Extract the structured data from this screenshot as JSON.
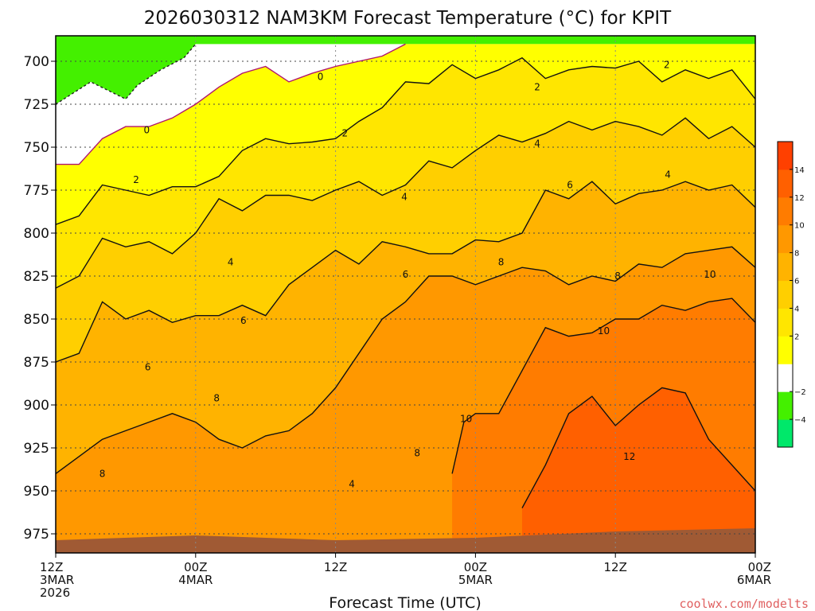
{
  "title": "2026030312 NAM3KM Forecast Temperature (°C) for KPIT",
  "credit": "coolwx.com/modelts",
  "chart_data": {
    "type": "contour",
    "title": "2026030312 NAM3KM Forecast Temperature (°C) for KPIT",
    "xlabel": "Forecast Time (UTC)",
    "ylabel": "",
    "ylim": [
      980,
      690
    ],
    "y_axis": "pressure (hPa), inverted",
    "y_ticks": [
      "700",
      "725",
      "750",
      "775",
      "800",
      "825",
      "850",
      "875",
      "900",
      "925",
      "950",
      "975"
    ],
    "x_ticks": [
      {
        "line1": "12Z",
        "line2": "3MAR",
        "line3": "2026"
      },
      {
        "line1": "00Z",
        "line2": "4MAR",
        "line3": ""
      },
      {
        "line1": "12Z",
        "line2": "",
        "line3": ""
      },
      {
        "line1": "00Z",
        "line2": "5MAR",
        "line3": ""
      },
      {
        "line1": "12Z",
        "line2": "",
        "line3": ""
      },
      {
        "line1": "00Z",
        "line2": "6MAR",
        "line3": ""
      }
    ],
    "x_hours": [
      0,
      12,
      24,
      36,
      48,
      60
    ],
    "grid": true,
    "colorbar": {
      "placement": "right",
      "levels": [
        -6,
        -4,
        -2,
        0,
        2,
        4,
        6,
        8,
        10,
        12,
        14,
        16
      ],
      "labels": [
        "−4",
        "−2",
        "2",
        "4",
        "6",
        "8",
        "10",
        "12",
        "14"
      ],
      "colors": [
        "#00e86a",
        "#44f000",
        "#ffffff",
        "#ffff00",
        "#ffe600",
        "#ffcf00",
        "#ffb300",
        "#ff9800",
        "#ff7c00",
        "#ff6000",
        "#ff4000"
      ]
    },
    "isotherms": [
      {
        "level": -2,
        "points": [
          [
            0,
            725
          ],
          [
            3,
            712
          ],
          [
            6,
            722
          ],
          [
            7,
            714
          ],
          [
            9,
            705
          ],
          [
            11,
            698
          ],
          [
            12,
            690
          ]
        ]
      },
      {
        "level": 0,
        "points": [
          [
            0,
            760
          ],
          [
            2,
            760
          ],
          [
            4,
            745
          ],
          [
            6,
            738
          ],
          [
            8,
            738
          ],
          [
            10,
            733
          ],
          [
            12,
            725
          ],
          [
            14,
            715
          ],
          [
            16,
            707
          ],
          [
            18,
            703
          ],
          [
            20,
            712
          ],
          [
            22,
            707
          ],
          [
            24,
            703
          ],
          [
            26,
            700
          ],
          [
            28,
            697
          ],
          [
            30,
            690
          ]
        ]
      },
      {
        "level": 2,
        "points": [
          [
            0,
            795
          ],
          [
            2,
            790
          ],
          [
            4,
            772
          ],
          [
            6,
            775
          ],
          [
            8,
            778
          ],
          [
            10,
            773
          ],
          [
            12,
            773
          ],
          [
            14,
            767
          ],
          [
            16,
            752
          ],
          [
            18,
            745
          ],
          [
            20,
            748
          ],
          [
            22,
            747
          ],
          [
            24,
            745
          ],
          [
            26,
            735
          ],
          [
            28,
            727
          ],
          [
            30,
            712
          ],
          [
            32,
            713
          ],
          [
            34,
            702
          ],
          [
            36,
            710
          ],
          [
            38,
            705
          ],
          [
            40,
            698
          ],
          [
            42,
            710
          ],
          [
            44,
            705
          ],
          [
            46,
            703
          ],
          [
            48,
            704
          ],
          [
            50,
            700
          ],
          [
            52,
            712
          ],
          [
            54,
            705
          ],
          [
            56,
            710
          ],
          [
            58,
            705
          ],
          [
            60,
            722
          ]
        ]
      },
      {
        "level": 4,
        "points": [
          [
            0,
            832
          ],
          [
            2,
            825
          ],
          [
            4,
            803
          ],
          [
            6,
            808
          ],
          [
            8,
            805
          ],
          [
            10,
            812
          ],
          [
            12,
            800
          ],
          [
            14,
            780
          ],
          [
            16,
            787
          ],
          [
            18,
            778
          ],
          [
            20,
            778
          ],
          [
            22,
            781
          ],
          [
            24,
            775
          ],
          [
            26,
            770
          ],
          [
            28,
            778
          ],
          [
            30,
            772
          ],
          [
            32,
            758
          ],
          [
            34,
            762
          ],
          [
            36,
            752
          ],
          [
            38,
            743
          ],
          [
            40,
            747
          ],
          [
            42,
            742
          ],
          [
            44,
            735
          ],
          [
            46,
            740
          ],
          [
            48,
            735
          ],
          [
            50,
            738
          ],
          [
            52,
            743
          ],
          [
            54,
            733
          ],
          [
            56,
            745
          ],
          [
            58,
            738
          ],
          [
            60,
            750
          ]
        ]
      },
      {
        "level": 6,
        "points": [
          [
            0,
            875
          ],
          [
            2,
            870
          ],
          [
            4,
            840
          ],
          [
            6,
            850
          ],
          [
            8,
            845
          ],
          [
            10,
            852
          ],
          [
            12,
            848
          ],
          [
            14,
            848
          ],
          [
            16,
            842
          ],
          [
            18,
            848
          ],
          [
            20,
            830
          ],
          [
            22,
            820
          ],
          [
            24,
            810
          ],
          [
            26,
            818
          ],
          [
            28,
            805
          ],
          [
            30,
            808
          ],
          [
            32,
            812
          ],
          [
            34,
            812
          ],
          [
            36,
            804
          ],
          [
            38,
            805
          ],
          [
            40,
            800
          ],
          [
            42,
            775
          ],
          [
            44,
            780
          ],
          [
            46,
            770
          ],
          [
            48,
            783
          ],
          [
            50,
            777
          ],
          [
            52,
            775
          ],
          [
            54,
            770
          ],
          [
            56,
            775
          ],
          [
            58,
            772
          ],
          [
            60,
            785
          ]
        ]
      },
      {
        "level": 8,
        "points": [
          [
            0,
            940
          ],
          [
            2,
            930
          ],
          [
            4,
            920
          ],
          [
            6,
            915
          ],
          [
            8,
            910
          ],
          [
            10,
            905
          ],
          [
            12,
            910
          ],
          [
            14,
            920
          ],
          [
            16,
            925
          ],
          [
            18,
            918
          ],
          [
            20,
            915
          ],
          [
            22,
            905
          ],
          [
            24,
            890
          ],
          [
            26,
            870
          ],
          [
            28,
            850
          ],
          [
            30,
            840
          ],
          [
            32,
            825
          ],
          [
            34,
            825
          ],
          [
            36,
            830
          ],
          [
            38,
            825
          ],
          [
            40,
            820
          ],
          [
            42,
            822
          ],
          [
            44,
            830
          ],
          [
            46,
            825
          ],
          [
            48,
            828
          ],
          [
            50,
            818
          ],
          [
            52,
            820
          ],
          [
            54,
            812
          ],
          [
            56,
            810
          ],
          [
            58,
            808
          ],
          [
            60,
            820
          ]
        ]
      },
      {
        "level": 10,
        "points": [
          [
            34,
            940
          ],
          [
            35,
            910
          ],
          [
            36,
            905
          ],
          [
            38,
            905
          ],
          [
            40,
            880
          ],
          [
            42,
            855
          ],
          [
            44,
            860
          ],
          [
            46,
            858
          ],
          [
            48,
            850
          ],
          [
            50,
            850
          ],
          [
            52,
            842
          ],
          [
            54,
            845
          ],
          [
            56,
            840
          ],
          [
            58,
            838
          ],
          [
            60,
            852
          ]
        ]
      },
      {
        "level": 12,
        "points": [
          [
            40,
            960
          ],
          [
            42,
            935
          ],
          [
            44,
            905
          ],
          [
            46,
            895
          ],
          [
            48,
            912
          ],
          [
            50,
            900
          ],
          [
            52,
            890
          ],
          [
            54,
            893
          ],
          [
            56,
            920
          ],
          [
            58,
            935
          ],
          [
            60,
            950
          ]
        ]
      }
    ],
    "contour_labels": [
      {
        "text": "0",
        "hour": 22.7,
        "p": 709
      },
      {
        "text": "0",
        "hour": 7.8,
        "p": 740
      },
      {
        "text": "2",
        "hour": 24.8,
        "p": 742
      },
      {
        "text": "2",
        "hour": 41.3,
        "p": 715
      },
      {
        "text": "2",
        "hour": 52.4,
        "p": 702
      },
      {
        "text": "2",
        "hour": 6.9,
        "p": 769
      },
      {
        "text": "4",
        "hour": 41.3,
        "p": 748
      },
      {
        "text": "4",
        "hour": 29.9,
        "p": 779
      },
      {
        "text": "4",
        "hour": 52.5,
        "p": 766
      },
      {
        "text": "4",
        "hour": 15.0,
        "p": 817
      },
      {
        "text": "4",
        "hour": 25.4,
        "p": 946
      },
      {
        "text": "6",
        "hour": 44.1,
        "p": 772
      },
      {
        "text": "6",
        "hour": 30.0,
        "p": 824
      },
      {
        "text": "6",
        "hour": 16.1,
        "p": 851
      },
      {
        "text": "6",
        "hour": 7.9,
        "p": 878
      },
      {
        "text": "8",
        "hour": 38.2,
        "p": 817
      },
      {
        "text": "8",
        "hour": 48.2,
        "p": 825
      },
      {
        "text": "8",
        "hour": 13.8,
        "p": 896
      },
      {
        "text": "8",
        "hour": 31.0,
        "p": 928
      },
      {
        "text": "8",
        "hour": 4.0,
        "p": 940
      },
      {
        "text": "10",
        "hour": 56.1,
        "p": 824
      },
      {
        "text": "10",
        "hour": 47.0,
        "p": 857
      },
      {
        "text": "10",
        "hour": 35.2,
        "p": 908
      },
      {
        "text": "12",
        "hour": 49.2,
        "p": 930
      }
    ]
  }
}
